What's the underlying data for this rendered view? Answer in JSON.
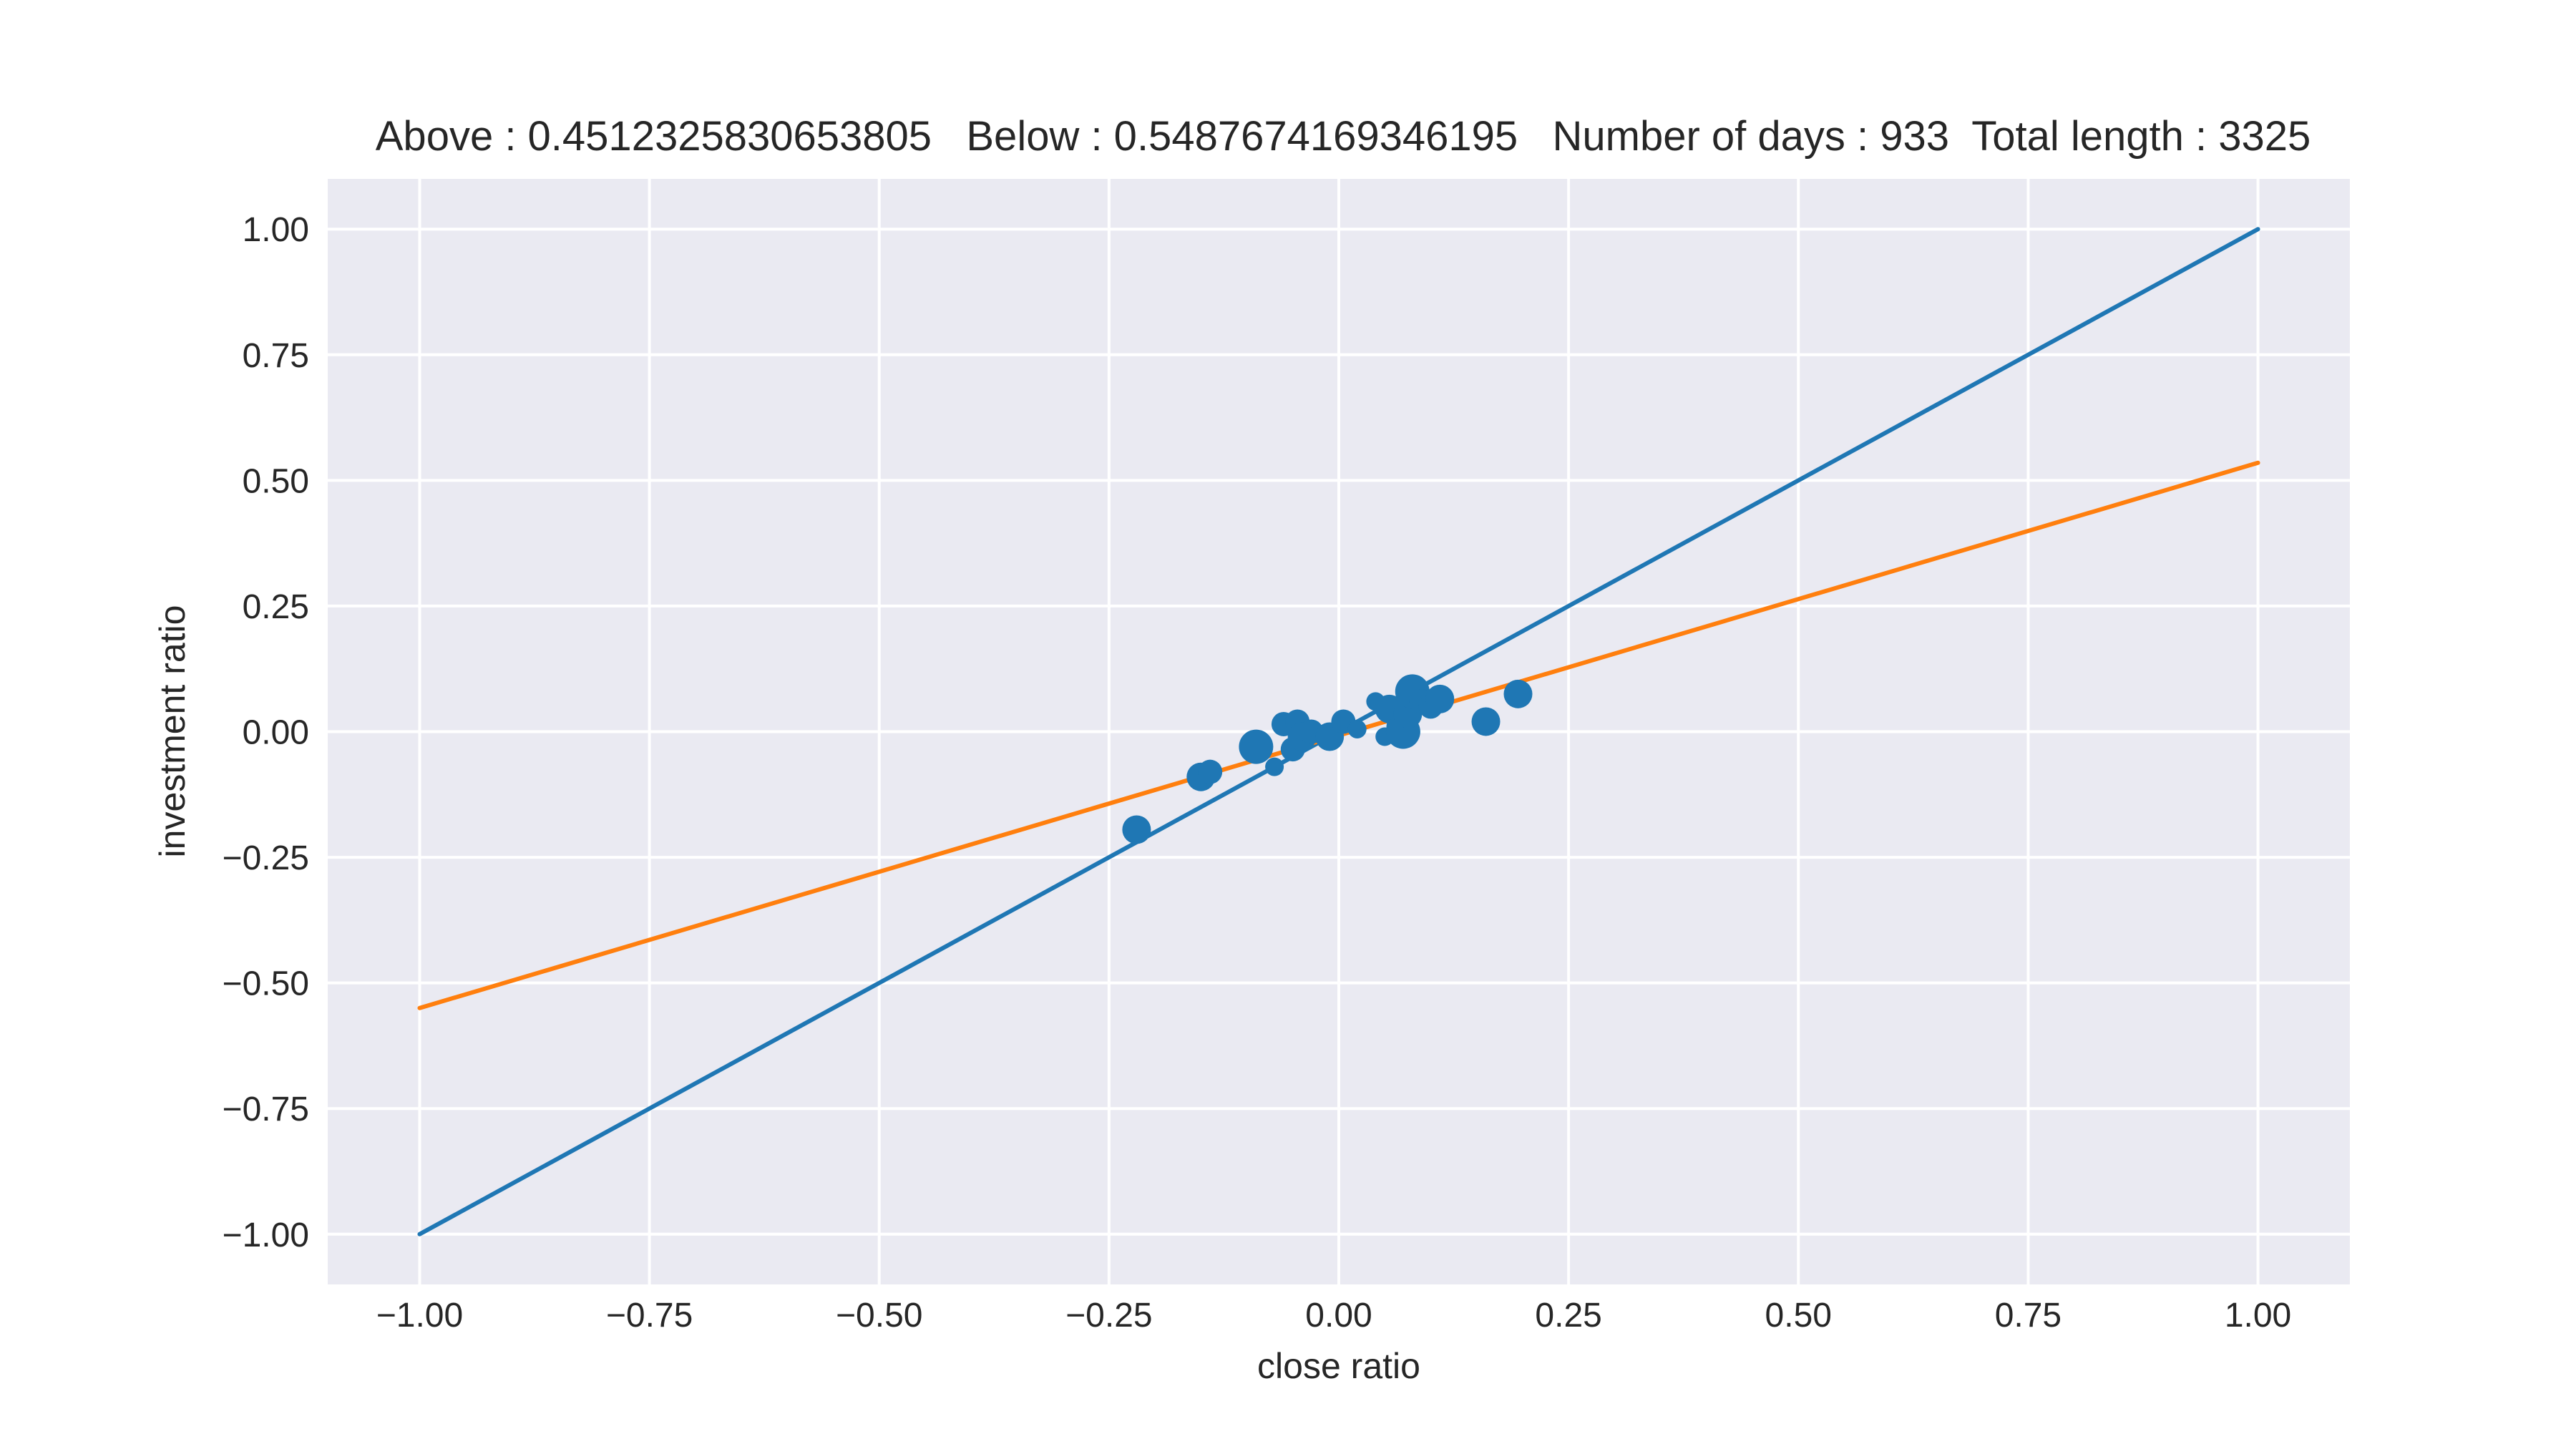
{
  "chart_data": {
    "type": "scatter",
    "title": "Above : 0.4512325830653805   Below : 0.5487674169346195   Number of days : 933  Total length : 3325",
    "xlabel": "close ratio",
    "ylabel": "investment ratio",
    "xlim": [
      -1.1,
      1.1
    ],
    "ylim": [
      -1.1,
      1.1
    ],
    "grid": true,
    "background_color": "#EAEAF2",
    "x_ticks": [
      "−1.00",
      "−0.75",
      "−0.50",
      "−0.25",
      "0.00",
      "0.25",
      "0.50",
      "0.75",
      "1.00"
    ],
    "y_ticks": [
      "−1.00",
      "−0.75",
      "−0.50",
      "−0.25",
      "0.00",
      "0.25",
      "0.50",
      "0.75",
      "1.00"
    ],
    "x_tick_values": [
      -1.0,
      -0.75,
      -0.5,
      -0.25,
      0.0,
      0.25,
      0.5,
      0.75,
      1.0
    ],
    "y_tick_values": [
      -1.0,
      -0.75,
      -0.5,
      -0.25,
      0.0,
      0.25,
      0.5,
      0.75,
      1.0
    ],
    "lines": [
      {
        "color": "#1F77B4",
        "points": [
          [
            -1.0,
            -1.0
          ],
          [
            1.0,
            1.0
          ]
        ]
      },
      {
        "color": "#FF7F0E",
        "points": [
          [
            -1.0,
            -0.55
          ],
          [
            1.0,
            0.535
          ]
        ]
      }
    ],
    "scatter": {
      "color": "#1F77B4",
      "points": [
        {
          "x": -0.22,
          "y": -0.195,
          "s": 3
        },
        {
          "x": -0.15,
          "y": -0.09,
          "s": 3
        },
        {
          "x": -0.14,
          "y": -0.08,
          "s": 2
        },
        {
          "x": -0.09,
          "y": -0.03,
          "s": 4
        },
        {
          "x": -0.07,
          "y": -0.07,
          "s": 1
        },
        {
          "x": -0.06,
          "y": 0.015,
          "s": 2
        },
        {
          "x": -0.05,
          "y": -0.035,
          "s": 2
        },
        {
          "x": -0.045,
          "y": 0.02,
          "s": 2
        },
        {
          "x": -0.04,
          "y": -0.01,
          "s": 3
        },
        {
          "x": -0.03,
          "y": 0.0,
          "s": 2
        },
        {
          "x": -0.01,
          "y": -0.01,
          "s": 3
        },
        {
          "x": 0.005,
          "y": 0.02,
          "s": 2
        },
        {
          "x": 0.02,
          "y": 0.005,
          "s": 1
        },
        {
          "x": 0.04,
          "y": 0.06,
          "s": 1
        },
        {
          "x": 0.05,
          "y": -0.01,
          "s": 1
        },
        {
          "x": 0.055,
          "y": 0.045,
          "s": 3
        },
        {
          "x": 0.065,
          "y": 0.01,
          "s": 2
        },
        {
          "x": 0.07,
          "y": 0.0,
          "s": 4
        },
        {
          "x": 0.075,
          "y": 0.035,
          "s": 3
        },
        {
          "x": 0.08,
          "y": 0.08,
          "s": 4
        },
        {
          "x": 0.09,
          "y": 0.06,
          "s": 2
        },
        {
          "x": 0.1,
          "y": 0.05,
          "s": 2
        },
        {
          "x": 0.11,
          "y": 0.065,
          "s": 3
        },
        {
          "x": 0.16,
          "y": 0.02,
          "s": 3
        },
        {
          "x": 0.195,
          "y": 0.075,
          "s": 3
        }
      ]
    }
  }
}
